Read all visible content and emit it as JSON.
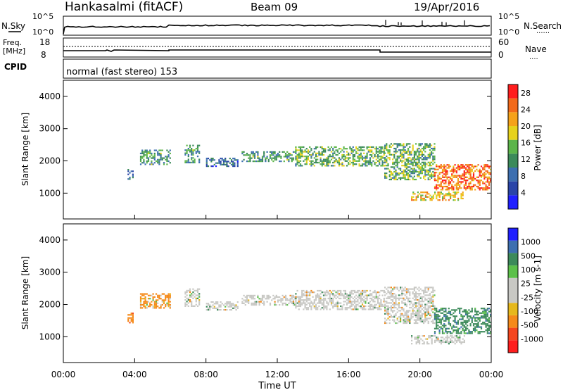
{
  "header": {
    "station": "Hankasalmi (fitACF)",
    "beam": "Beam 09",
    "date": "19/Apr/2016"
  },
  "noise_panel": {
    "left_label": "N.Sky",
    "left_ticks": [
      "10^5",
      "10^0"
    ],
    "right_ticks": [
      "10^5",
      "10^0"
    ],
    "right_label": "N.Search",
    "right_legend_line": "......"
  },
  "freq_panel": {
    "left_label_1": "Freq.",
    "left_label_2": "[MHz]",
    "left_ticks": [
      "18",
      "8"
    ],
    "right_ticks": [
      "60",
      "0"
    ],
    "right_label": "Nave",
    "right_legend_line": "...."
  },
  "cpid": {
    "label": "CPID",
    "text": "normal (fast stereo) 153"
  },
  "colors": {
    "power_scale": [
      "#2020ff",
      "#2a45a8",
      "#3d6fb0",
      "#3c8a5a",
      "#5cb54a",
      "#e6d21c",
      "#f5a21a",
      "#f26a1a",
      "#ff1e1e"
    ],
    "velocity_scale": [
      "#ff1e1e",
      "#f5461e",
      "#f58a1a",
      "#e6b81c",
      "#c8c8c4",
      "#c8c8c4",
      "#5cc04a",
      "#3c8a5a",
      "#3d6fb0",
      "#2020ff"
    ],
    "ground_scatter": "#c8c8c4"
  },
  "chart_data": [
    {
      "type": "heatmap",
      "panel": "power",
      "ylabel": "Slant Range [km]",
      "y_ticks": [
        "1000",
        "2000",
        "3000",
        "4000"
      ],
      "ylim": [
        200,
        4500
      ],
      "xlim": [
        "00:00",
        "24:00"
      ],
      "colorbar": {
        "label": "Power [dB]",
        "tick_labels": [
          "4",
          "8",
          "12",
          "16",
          "20",
          "24",
          "28"
        ],
        "range": [
          0,
          30
        ]
      },
      "echo_regions": [
        {
          "start_hr": 3.6,
          "end_hr": 3.9,
          "range_min_km": 1450,
          "range_max_km": 1750,
          "power_db": 8
        },
        {
          "start_hr": 4.3,
          "end_hr": 6.0,
          "range_min_km": 1900,
          "range_max_km": 2350,
          "power_db": 12
        },
        {
          "start_hr": 6.8,
          "end_hr": 7.6,
          "range_min_km": 1950,
          "range_max_km": 2500,
          "power_db": 12
        },
        {
          "start_hr": 8.0,
          "end_hr": 9.8,
          "range_min_km": 1850,
          "range_max_km": 2100,
          "power_db": 8
        },
        {
          "start_hr": 10.0,
          "end_hr": 13.0,
          "range_min_km": 2000,
          "range_max_km": 2300,
          "power_db": 12
        },
        {
          "start_hr": 13.0,
          "end_hr": 18.0,
          "range_min_km": 1850,
          "range_max_km": 2450,
          "power_db": 14
        },
        {
          "start_hr": 18.0,
          "end_hr": 20.8,
          "range_min_km": 1400,
          "range_max_km": 2550,
          "power_db": 14
        },
        {
          "start_hr": 20.8,
          "end_hr": 24.0,
          "range_min_km": 1100,
          "range_max_km": 1900,
          "power_db": 24
        },
        {
          "start_hr": 19.5,
          "end_hr": 22.5,
          "range_min_km": 800,
          "range_max_km": 1050,
          "power_db": 20
        }
      ]
    },
    {
      "type": "heatmap",
      "panel": "velocity",
      "ylabel": "Slant Range [km]",
      "y_ticks": [
        "1000",
        "2000",
        "3000",
        "4000"
      ],
      "ylim": [
        200,
        4500
      ],
      "xlabel": "Time UT",
      "x_ticks": [
        "00:00",
        "04:00",
        "08:00",
        "12:00",
        "16:00",
        "20:00",
        "00:00"
      ],
      "xlim": [
        "00:00",
        "24:00"
      ],
      "colorbar": {
        "label": "Velocity [m s-1]",
        "tick_labels": [
          "1000",
          "500",
          "100",
          "25",
          "-25",
          "-100",
          "-500",
          "-1000"
        ]
      },
      "echo_regions": [
        {
          "start_hr": 3.6,
          "end_hr": 3.9,
          "range_min_km": 1450,
          "range_max_km": 1750,
          "velocity_ms": -300
        },
        {
          "start_hr": 4.3,
          "end_hr": 6.0,
          "range_min_km": 1900,
          "range_max_km": 2350,
          "velocity_ms": -200
        },
        {
          "start_hr": 6.8,
          "end_hr": 7.6,
          "range_min_km": 1950,
          "range_max_km": 2500,
          "velocity_ms": 0
        },
        {
          "start_hr": 8.0,
          "end_hr": 9.8,
          "range_min_km": 1850,
          "range_max_km": 2100,
          "velocity_ms": 0
        },
        {
          "start_hr": 10.0,
          "end_hr": 13.0,
          "range_min_km": 2000,
          "range_max_km": 2300,
          "velocity_ms": 0
        },
        {
          "start_hr": 13.0,
          "end_hr": 18.0,
          "range_min_km": 1850,
          "range_max_km": 2450,
          "velocity_ms": 0
        },
        {
          "start_hr": 18.0,
          "end_hr": 20.8,
          "range_min_km": 1400,
          "range_max_km": 2550,
          "velocity_ms": 0
        },
        {
          "start_hr": 20.8,
          "end_hr": 24.0,
          "range_min_km": 1100,
          "range_max_km": 1900,
          "velocity_ms": 300
        },
        {
          "start_hr": 19.5,
          "end_hr": 22.5,
          "range_min_km": 800,
          "range_max_km": 1050,
          "velocity_ms": 0
        }
      ]
    }
  ]
}
